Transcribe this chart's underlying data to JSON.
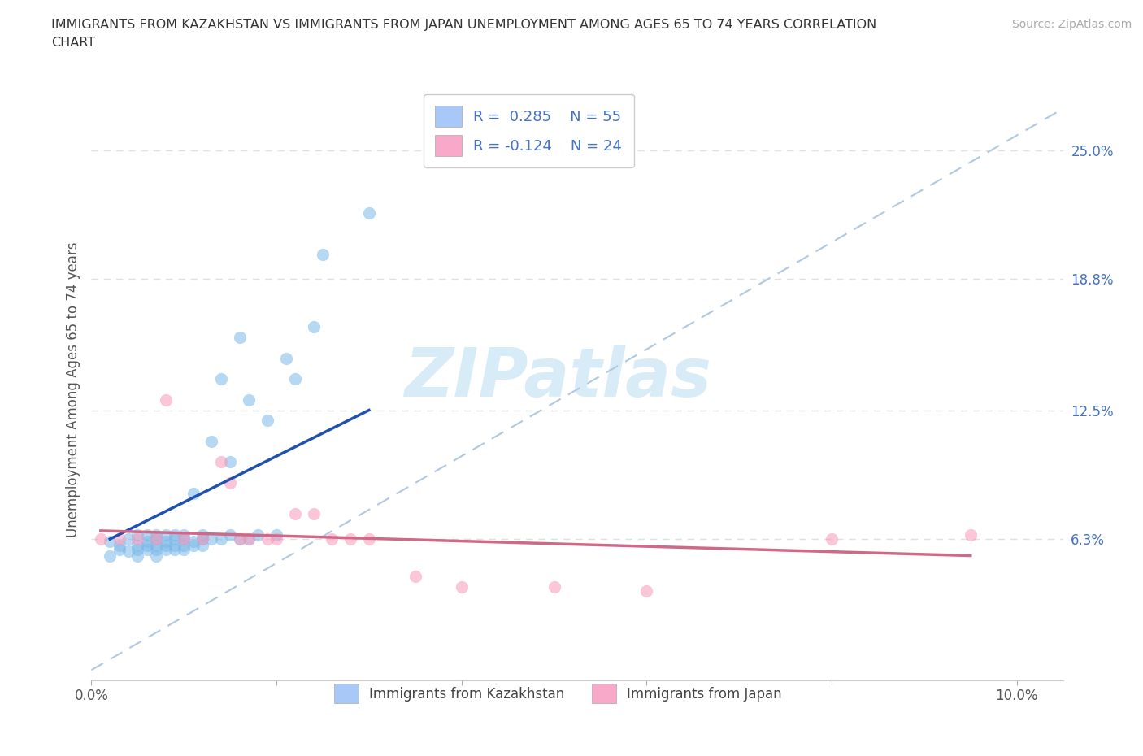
{
  "title": "IMMIGRANTS FROM KAZAKHSTAN VS IMMIGRANTS FROM JAPAN UNEMPLOYMENT AMONG AGES 65 TO 74 YEARS CORRELATION\nCHART",
  "source_text": "Source: ZipAtlas.com",
  "ylabel": "Unemployment Among Ages 65 to 74 years",
  "xlim": [
    0.0,
    0.105
  ],
  "ylim": [
    -0.005,
    0.275
  ],
  "ytick_right_labels": [
    "25.0%",
    "18.8%",
    "12.5%",
    "6.3%"
  ],
  "ytick_right_positions": [
    0.25,
    0.188,
    0.125,
    0.063
  ],
  "legend_r1": "R =  0.285    N = 55",
  "legend_r2": "R = -0.124    N = 24",
  "legend_color1": "#a8c8f8",
  "legend_color2": "#f8a8c8",
  "scatter_color_kaz": "#7ab8e8",
  "scatter_color_jpn": "#f898b8",
  "trend_color_kaz": "#2050b0",
  "trend_color_jpn": "#d06888",
  "diagonal_color": "#b0c8e0",
  "watermark_text": "ZIPatlas",
  "watermark_color": "#d8ecf8",
  "label_kaz": "Immigrants from Kazakhstan",
  "label_jpn": "Immigrants from Japan",
  "kaz_x": [
    0.002,
    0.002,
    0.003,
    0.003,
    0.004,
    0.004,
    0.005,
    0.005,
    0.005,
    0.005,
    0.006,
    0.006,
    0.006,
    0.006,
    0.007,
    0.007,
    0.007,
    0.007,
    0.007,
    0.008,
    0.008,
    0.008,
    0.008,
    0.009,
    0.009,
    0.009,
    0.009,
    0.01,
    0.01,
    0.01,
    0.01,
    0.011,
    0.011,
    0.011,
    0.012,
    0.012,
    0.012,
    0.013,
    0.013,
    0.014,
    0.014,
    0.015,
    0.015,
    0.016,
    0.016,
    0.017,
    0.017,
    0.018,
    0.019,
    0.02,
    0.021,
    0.022,
    0.024,
    0.025,
    0.03
  ],
  "kaz_y": [
    0.062,
    0.055,
    0.06,
    0.058,
    0.063,
    0.057,
    0.06,
    0.058,
    0.065,
    0.055,
    0.062,
    0.058,
    0.065,
    0.06,
    0.063,
    0.06,
    0.058,
    0.065,
    0.055,
    0.062,
    0.06,
    0.065,
    0.058,
    0.063,
    0.06,
    0.058,
    0.065,
    0.063,
    0.06,
    0.058,
    0.065,
    0.062,
    0.085,
    0.06,
    0.063,
    0.06,
    0.065,
    0.11,
    0.063,
    0.14,
    0.063,
    0.065,
    0.1,
    0.063,
    0.16,
    0.063,
    0.13,
    0.065,
    0.12,
    0.065,
    0.15,
    0.14,
    0.165,
    0.2,
    0.22
  ],
  "kaz_trend_x": [
    0.002,
    0.03
  ],
  "kaz_trend_y": [
    0.063,
    0.125
  ],
  "jpn_x": [
    0.001,
    0.003,
    0.005,
    0.007,
    0.008,
    0.01,
    0.012,
    0.014,
    0.015,
    0.016,
    0.017,
    0.019,
    0.02,
    0.022,
    0.024,
    0.026,
    0.028,
    0.03,
    0.035,
    0.04,
    0.05,
    0.06,
    0.08,
    0.095
  ],
  "jpn_y": [
    0.063,
    0.063,
    0.063,
    0.063,
    0.13,
    0.063,
    0.063,
    0.1,
    0.09,
    0.063,
    0.063,
    0.063,
    0.063,
    0.075,
    0.075,
    0.063,
    0.063,
    0.063,
    0.045,
    0.04,
    0.04,
    0.038,
    0.063,
    0.065
  ],
  "jpn_trend_x": [
    0.001,
    0.095
  ],
  "jpn_trend_y": [
    0.067,
    0.055
  ],
  "background_color": "#ffffff",
  "grid_color": "#e0e0e0"
}
